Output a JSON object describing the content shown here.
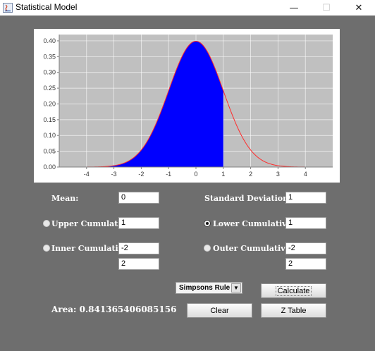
{
  "window": {
    "title": "Statistical Model",
    "minimize": "—",
    "maximize": "☐",
    "close": "✕"
  },
  "chart_data": {
    "type": "area",
    "xlim": [
      -5,
      5
    ],
    "ylim": [
      0,
      0.42
    ],
    "x_ticks": [
      "-4",
      "-3",
      "-2",
      "-1",
      "0",
      "1",
      "2",
      "3",
      "4"
    ],
    "x_tick_values": [
      -4,
      -3,
      -2,
      -1,
      0,
      1,
      2,
      3,
      4
    ],
    "y_ticks": [
      "0.00",
      "0.05",
      "0.10",
      "0.15",
      "0.20",
      "0.25",
      "0.30",
      "0.35",
      "0.40"
    ],
    "y_tick_values": [
      0,
      0.05,
      0.1,
      0.15,
      0.2,
      0.25,
      0.3,
      0.35,
      0.4
    ],
    "series": [
      {
        "curve": "normal-pdf",
        "mean": 0,
        "sd": 1,
        "color": "#ff2b2b"
      }
    ],
    "shaded_region": {
      "from": -5,
      "to": 1,
      "color": "#0000ff"
    },
    "background": "#c0c0c0",
    "grid": true
  },
  "form": {
    "mean_label": "Mean:",
    "mean_value": "0",
    "sd_label": "Standard Deviation:",
    "sd_value": "1",
    "upper_label": "Upper Cumulative",
    "upper_value": "1",
    "lower_label": "Lower Cumulative",
    "lower_value": "1",
    "inner_label": "Inner Cumulative",
    "inner_value1": "-2",
    "inner_value2": "2",
    "outer_label": "Outer Cumulative",
    "outer_value1": "-2",
    "outer_value2": "2",
    "selected_option": "lower"
  },
  "controls": {
    "method": "Simpsons Rule",
    "calculate": "Calculate",
    "clear": "Clear",
    "ztable": "Z Table",
    "area_text": "Area: 0.841365406085156"
  }
}
